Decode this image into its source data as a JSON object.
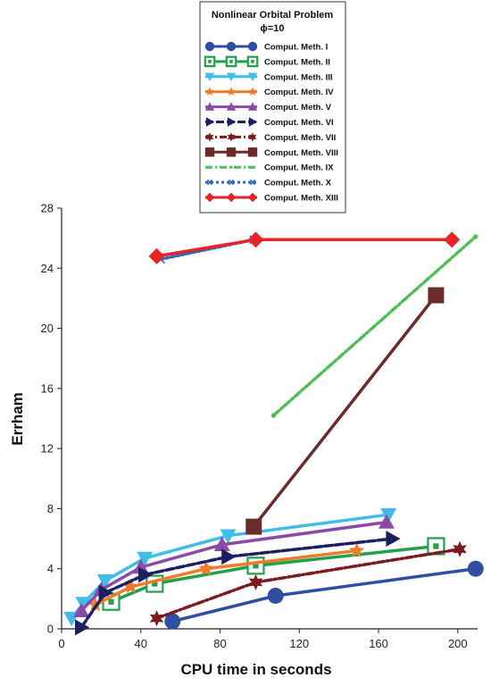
{
  "chart_data": {
    "type": "line",
    "title": "Nonlinear Orbital Problem",
    "subtitle": "ϕ=10",
    "xlabel": "CPU time in seconds",
    "ylabel": "Errham",
    "xlim": [
      0,
      210
    ],
    "ylim": [
      0,
      28
    ],
    "xticks": [
      0,
      40,
      80,
      120,
      160,
      200
    ],
    "yticks": [
      0,
      4,
      8,
      12,
      16,
      20,
      24,
      28
    ],
    "grid": false,
    "legend_position": "top",
    "series": [
      {
        "name": "Comput. Meth. I",
        "color": "#2f4fa3",
        "marker": "circle",
        "style": "solid",
        "x": [
          56,
          108,
          209
        ],
        "y": [
          0.5,
          2.2,
          4.0
        ]
      },
      {
        "name": "Comput. Meth. II",
        "color": "#22a04a",
        "marker": "square-open",
        "style": "solid",
        "x": [
          25,
          47,
          98,
          189
        ],
        "y": [
          1.8,
          3.0,
          4.2,
          5.5
        ]
      },
      {
        "name": "Comput. Meth. III",
        "color": "#3fbde8",
        "marker": "triangle-down",
        "style": "solid",
        "x": [
          5,
          11,
          22,
          42,
          84,
          165
        ],
        "y": [
          0.7,
          1.7,
          3.2,
          4.7,
          6.2,
          7.6
        ]
      },
      {
        "name": "Comput. Meth. IV",
        "color": "#f07a2a",
        "marker": "star",
        "style": "solid",
        "x": [
          17,
          35,
          73,
          149
        ],
        "y": [
          1.6,
          2.8,
          4.0,
          5.2
        ]
      },
      {
        "name": "Comput. Meth. V",
        "color": "#8b4aa8",
        "marker": "triangle-up",
        "style": "solid",
        "x": [
          10,
          20,
          40,
          81,
          164
        ],
        "y": [
          1.2,
          2.6,
          4.1,
          5.6,
          7.1
        ]
      },
      {
        "name": "Comput. Meth. VI",
        "color": "#1c2060",
        "marker": "triangle-right",
        "style": "dashed",
        "x": [
          10,
          22,
          42,
          84,
          167
        ],
        "y": [
          0.1,
          2.4,
          3.6,
          4.8,
          6.0
        ]
      },
      {
        "name": "Comput. Meth. VII",
        "color": "#7a1c1e",
        "marker": "star6",
        "style": "dashdot",
        "x": [
          48,
          98,
          201
        ],
        "y": [
          0.7,
          3.1,
          5.3
        ]
      },
      {
        "name": "Comput. Meth. VIII",
        "color": "#6b2b2b",
        "marker": "square",
        "style": "solid",
        "x": [
          97,
          189
        ],
        "y": [
          6.8,
          22.2
        ]
      },
      {
        "name": "Comput. Meth. IX",
        "color": "#4fbf55",
        "marker": "dot",
        "style": "dashdot",
        "x": [
          107,
          209
        ],
        "y": [
          14.2,
          26.1
        ]
      },
      {
        "name": "Comput. Meth. X",
        "color": "#2f68b6",
        "marker": "cross",
        "style": "dotted",
        "x": [
          50,
          97,
          197
        ],
        "y": [
          24.6,
          25.9,
          25.9
        ]
      },
      {
        "name": "Comput. Meth. XIII",
        "color": "#e62325",
        "marker": "diamond",
        "style": "solid",
        "x": [
          48,
          98,
          197
        ],
        "y": [
          24.8,
          25.9,
          25.9
        ]
      }
    ]
  }
}
